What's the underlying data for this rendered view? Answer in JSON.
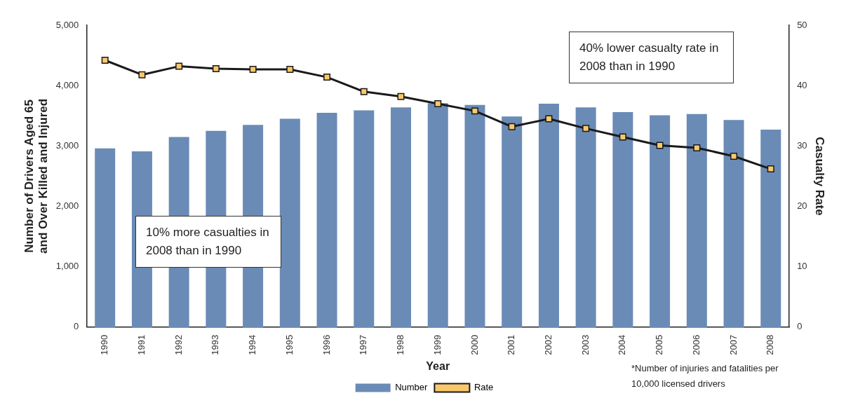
{
  "chart_data": {
    "type": "bar",
    "xlabel": "Year",
    "ylabel": "Number of Drivers Aged 65 and Over Killed and Injured",
    "y2label": "Casualty Rate",
    "categories": [
      "1990",
      "1991",
      "1992",
      "1993",
      "1994",
      "1995",
      "1996",
      "1997",
      "1998",
      "1999",
      "2000",
      "2001",
      "2002",
      "2003",
      "2004",
      "2005",
      "2006",
      "2007",
      "2008"
    ],
    "series": [
      {
        "name": "Number",
        "color": "#6a8bb6",
        "values": [
          2960,
          2910,
          3150,
          3250,
          3350,
          3450,
          3550,
          3590,
          3640,
          3710,
          3680,
          3490,
          3700,
          3640,
          3560,
          3510,
          3530,
          3430,
          3270
        ]
      },
      {
        "name": "Rate",
        "type": "line",
        "axis": "y2",
        "color": "#1a1a1a",
        "marker": "square",
        "values": [
          44.2,
          41.8,
          43.2,
          42.8,
          42.7,
          42.7,
          41.4,
          39.0,
          38.2,
          37.0,
          35.8,
          33.2,
          34.5,
          32.9,
          31.5,
          30.1,
          29.7,
          28.3,
          26.2
        ]
      }
    ],
    "ylim": [
      0,
      5000
    ],
    "yticks": [
      0,
      {
        "value": 1000,
        "label": "1,000"
      },
      {
        "value": 2000,
        "label": "2,000"
      },
      {
        "value": 3000,
        "label": "3,000"
      },
      {
        "value": 4000,
        "label": "4,000"
      },
      {
        "value": 5000,
        "label": "5,000"
      }
    ],
    "y2lim": [
      0,
      50
    ],
    "y2ticks": [
      0,
      10,
      20,
      30,
      40,
      50
    ],
    "grid": false,
    "legend": "bottom",
    "annotations": [
      "10% more casualties in 2008 than in 1990",
      "40% lower casualty rate in 2008 than in 1990",
      "*Number of injuries and fatalities per 10,000 licensed drivers"
    ]
  }
}
